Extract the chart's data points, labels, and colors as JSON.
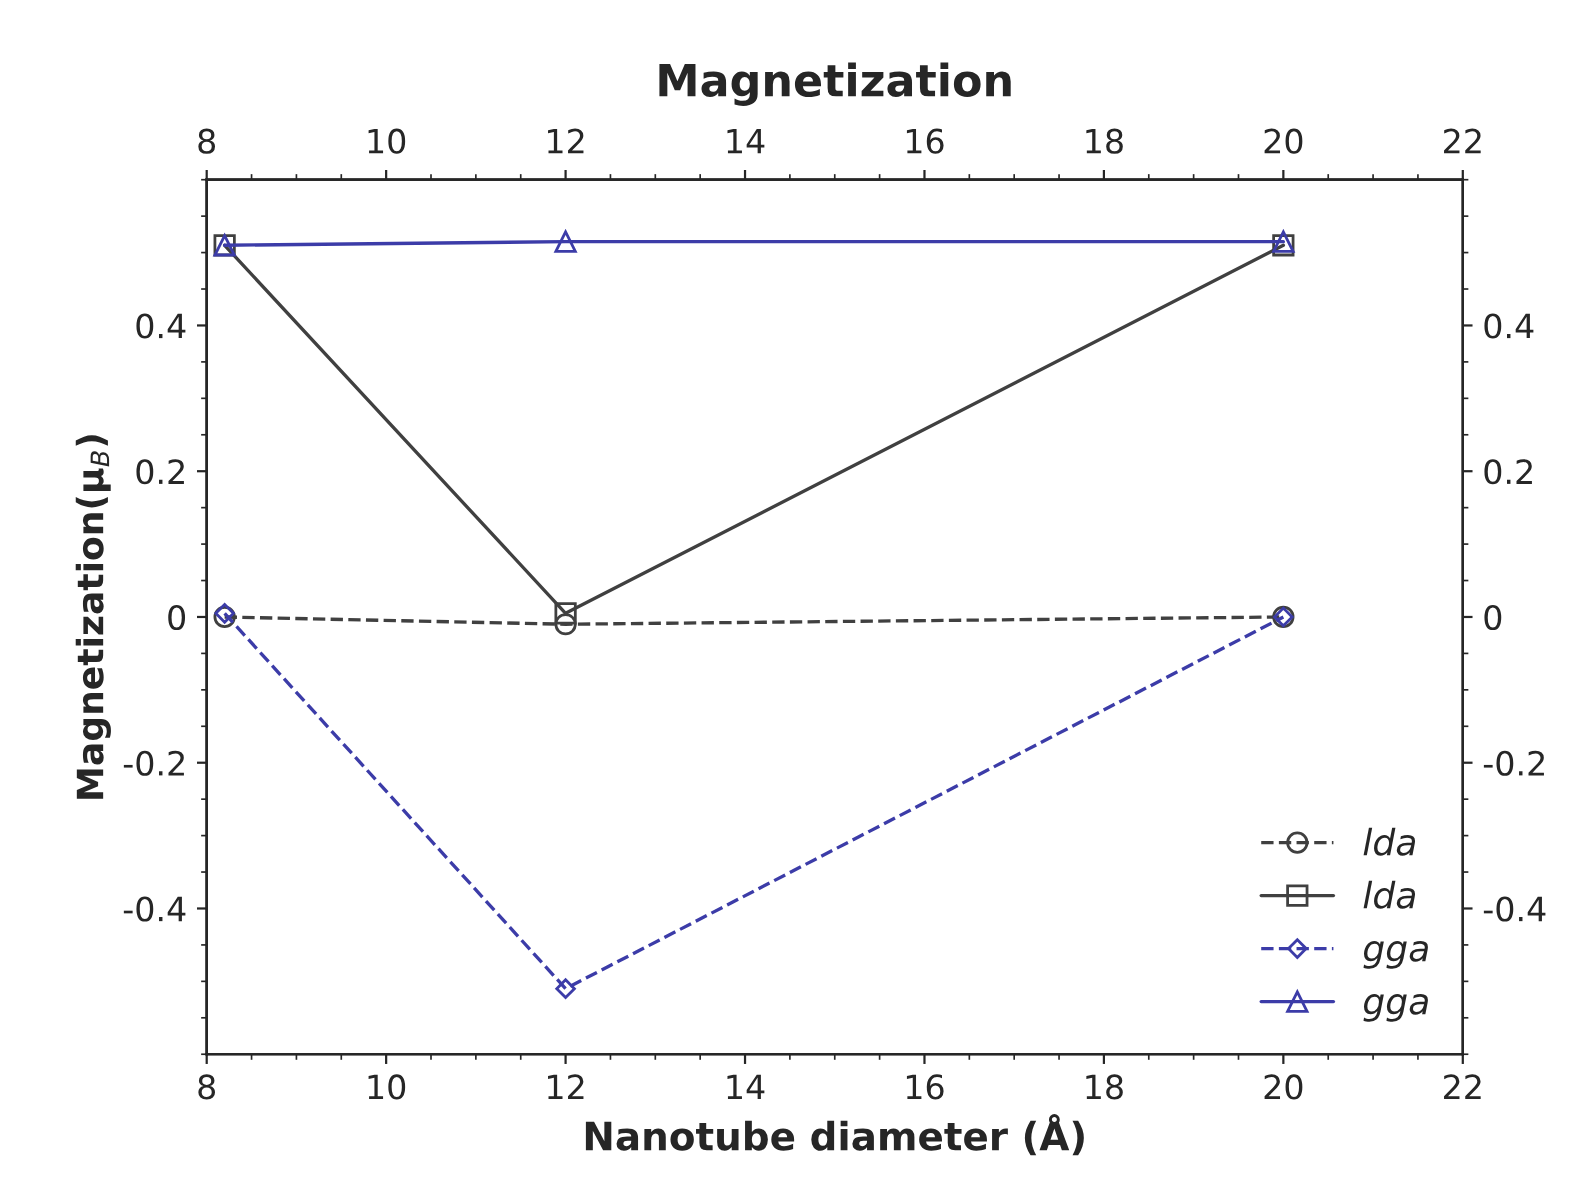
{
  "chart_data": {
    "type": "line",
    "title": "Magnetization",
    "xlabel": "Nanotube diameter (Å)",
    "ylabel": "Magnetization(μ$_{B}$)",
    "x": [
      8.2,
      12,
      20
    ],
    "series": [
      {
        "name": "lda",
        "color": "#404040",
        "values": [
          0,
          -0.01,
          0
        ],
        "marker": "circle",
        "line_style": "dashed"
      },
      {
        "name": "lda",
        "color": "#404040",
        "values": [
          0.51,
          0.005,
          0.51
        ],
        "marker": "square",
        "line_style": "solid"
      },
      {
        "name": "gga",
        "color": "#3c3ca8",
        "values": [
          0.005,
          -0.51,
          0
        ],
        "marker": "diamond",
        "line_style": "dashed"
      },
      {
        "name": "gga",
        "color": "#3c3ca8",
        "values": [
          0.51,
          0.515,
          0.515
        ],
        "marker": "triangle",
        "line_style": "solid"
      }
    ],
    "xlim": [
      8,
      22
    ],
    "xticks": [
      8,
      10,
      12,
      14,
      16,
      18,
      20,
      22
    ],
    "x2lim": [
      8,
      22
    ],
    "x2ticks": [
      8,
      10,
      12,
      14,
      16,
      18,
      20,
      22
    ],
    "ylim": [
      -0.6,
      0.6
    ],
    "yticks": [
      -0.4,
      -0.2,
      0,
      0.2,
      0.4
    ],
    "y2lim": [
      -0.6,
      0.6
    ],
    "y2ticks": [
      -0.4,
      -0.2,
      0,
      0.2,
      0.4
    ],
    "grid": false,
    "legend": "bottom right"
  }
}
